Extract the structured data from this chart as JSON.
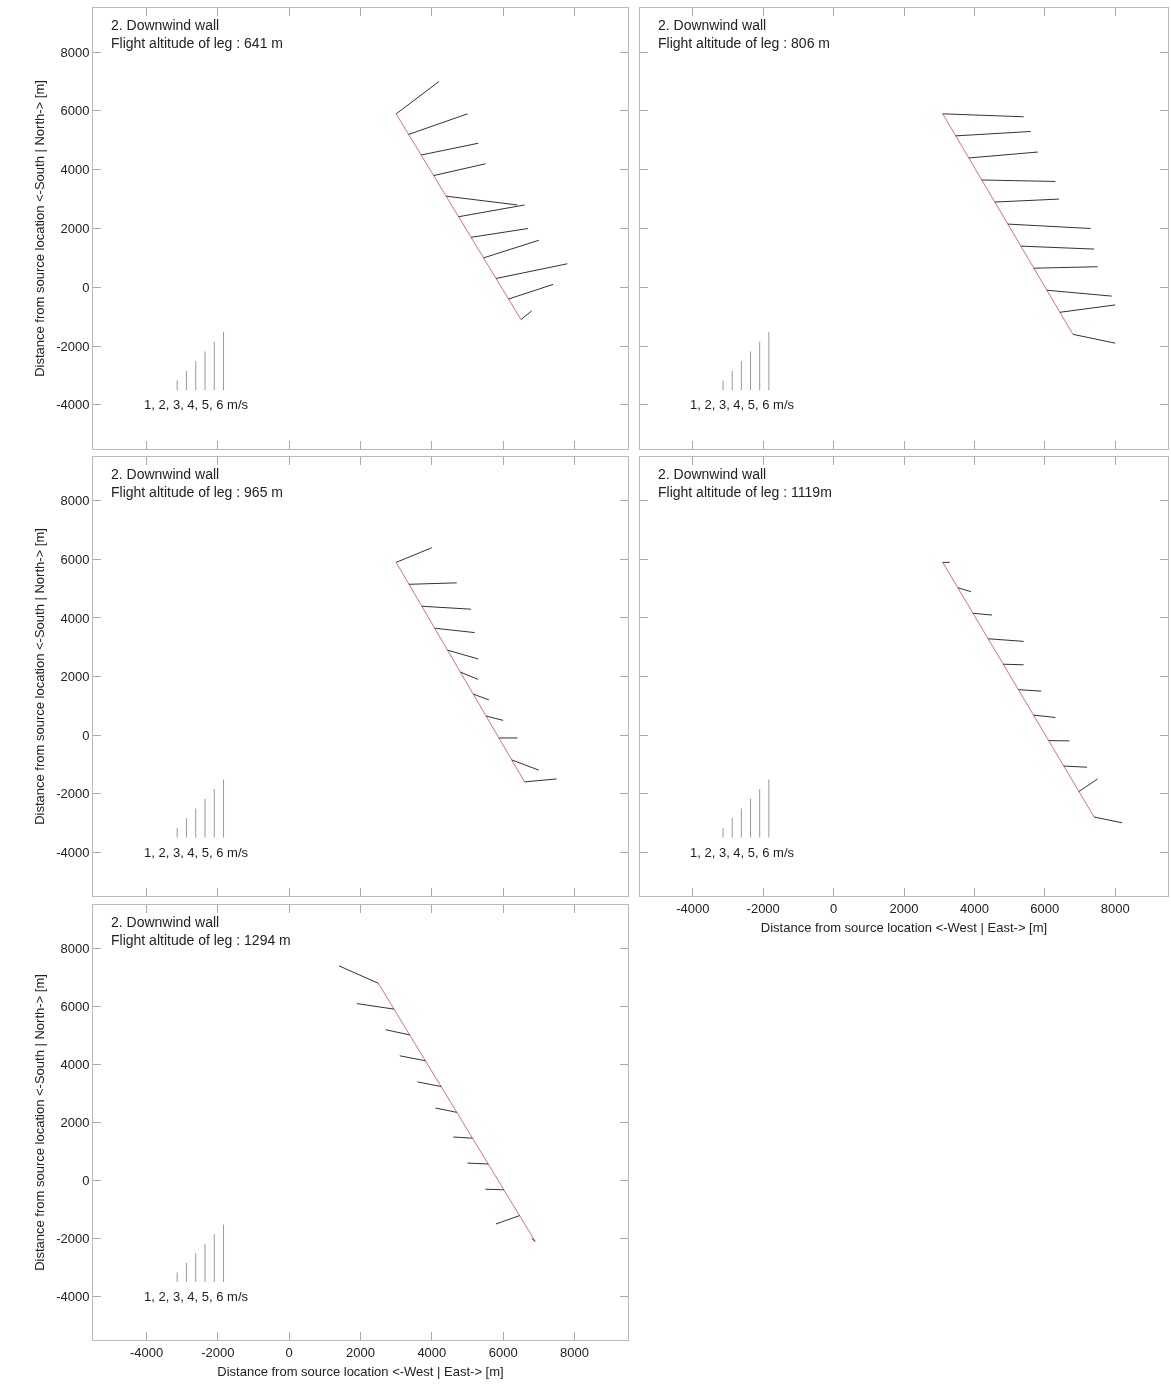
{
  "chart_data": [
    {
      "type": "line",
      "title": "2. Downwind wall",
      "subtitle": "Flight altitude of leg : 641 m",
      "ylabel": "Distance from source location <-South | North-> [m]",
      "annotations": [
        "1, 2, 3, 4, 5, 6 m/s"
      ],
      "xlim": [
        -5500,
        9500
      ],
      "ylim": [
        -5500,
        9500
      ],
      "xticks": [
        -4000,
        -2000,
        0,
        2000,
        4000,
        6000,
        8000
      ],
      "yticks": [
        -4000,
        -2000,
        0,
        2000,
        4000,
        6000,
        8000
      ],
      "tick_labels": "y",
      "series": [
        {
          "color": "#e07070",
          "x": [
            3000,
            6500
          ],
          "values": [
            5900,
            -1100
          ]
        },
        {
          "color": "#333333",
          "x": [
            3000,
            4200
          ],
          "values": [
            5900,
            7000
          ]
        },
        {
          "color": "#333333",
          "x": [
            3350,
            5000
          ],
          "values": [
            5200,
            5900
          ]
        },
        {
          "color": "#333333",
          "x": [
            3700,
            5300
          ],
          "values": [
            4500,
            4900
          ]
        },
        {
          "color": "#333333",
          "x": [
            4050,
            5500
          ],
          "values": [
            3800,
            4200
          ]
        },
        {
          "color": "#333333",
          "x": [
            4400,
            6400
          ],
          "values": [
            3100,
            2800
          ]
        },
        {
          "color": "#333333",
          "x": [
            4750,
            6600
          ],
          "values": [
            2400,
            2800
          ]
        },
        {
          "color": "#333333",
          "x": [
            5100,
            6700
          ],
          "values": [
            1700,
            2000
          ]
        },
        {
          "color": "#333333",
          "x": [
            5450,
            7000
          ],
          "values": [
            1000,
            1600
          ]
        },
        {
          "color": "#333333",
          "x": [
            5800,
            7800
          ],
          "values": [
            300,
            800
          ]
        },
        {
          "color": "#333333",
          "x": [
            6150,
            7400
          ],
          "values": [
            -400,
            100
          ]
        },
        {
          "color": "#333333",
          "x": [
            6500,
            6800
          ],
          "values": [
            -1100,
            -800
          ]
        }
      ]
    },
    {
      "type": "line",
      "title": "2. Downwind wall",
      "subtitle": "Flight altitude of leg : 806 m",
      "annotations": [
        "1, 2, 3, 4, 5, 6 m/s"
      ],
      "xlim": [
        -5500,
        9500
      ],
      "ylim": [
        -5500,
        9500
      ],
      "xticks": [
        -4000,
        -2000,
        0,
        2000,
        4000,
        6000,
        8000
      ],
      "yticks": [
        -4000,
        -2000,
        0,
        2000,
        4000,
        6000,
        8000
      ],
      "tick_labels": false,
      "series": [
        {
          "color": "#e07070",
          "x": [
            3100,
            6800
          ],
          "values": [
            5900,
            -1600
          ]
        },
        {
          "color": "#333333",
          "x": [
            3100,
            5400
          ],
          "values": [
            5900,
            5800
          ]
        },
        {
          "color": "#333333",
          "x": [
            3470,
            5600
          ],
          "values": [
            5150,
            5300
          ]
        },
        {
          "color": "#333333",
          "x": [
            3840,
            5800
          ],
          "values": [
            4400,
            4600
          ]
        },
        {
          "color": "#333333",
          "x": [
            4210,
            6300
          ],
          "values": [
            3650,
            3600
          ]
        },
        {
          "color": "#333333",
          "x": [
            4580,
            6400
          ],
          "values": [
            2900,
            3000
          ]
        },
        {
          "color": "#333333",
          "x": [
            4950,
            7300
          ],
          "values": [
            2150,
            2000
          ]
        },
        {
          "color": "#333333",
          "x": [
            5320,
            7400
          ],
          "values": [
            1400,
            1300
          ]
        },
        {
          "color": "#333333",
          "x": [
            5690,
            7500
          ],
          "values": [
            650,
            700
          ]
        },
        {
          "color": "#333333",
          "x": [
            6060,
            7900
          ],
          "values": [
            -100,
            -300
          ]
        },
        {
          "color": "#333333",
          "x": [
            6430,
            8000
          ],
          "values": [
            -850,
            -600
          ]
        },
        {
          "color": "#333333",
          "x": [
            6800,
            8000
          ],
          "values": [
            -1600,
            -1900
          ]
        }
      ]
    },
    {
      "type": "line",
      "title": "2. Downwind wall",
      "subtitle": "Flight altitude of leg : 965 m",
      "ylabel": "Distance from source location <-South | North-> [m]",
      "annotations": [
        "1, 2, 3, 4, 5, 6 m/s"
      ],
      "xlim": [
        -5500,
        9500
      ],
      "ylim": [
        -5500,
        9500
      ],
      "xticks": [
        -4000,
        -2000,
        0,
        2000,
        4000,
        6000,
        8000
      ],
      "yticks": [
        -4000,
        -2000,
        0,
        2000,
        4000,
        6000,
        8000
      ],
      "tick_labels": "y",
      "series": [
        {
          "color": "#e07070",
          "x": [
            3000,
            6600
          ],
          "values": [
            5900,
            -1600
          ]
        },
        {
          "color": "#333333",
          "x": [
            3000,
            4000
          ],
          "values": [
            5900,
            6400
          ]
        },
        {
          "color": "#333333",
          "x": [
            3360,
            4700
          ],
          "values": [
            5150,
            5200
          ]
        },
        {
          "color": "#333333",
          "x": [
            3720,
            5100
          ],
          "values": [
            4400,
            4300
          ]
        },
        {
          "color": "#333333",
          "x": [
            4080,
            5200
          ],
          "values": [
            3650,
            3500
          ]
        },
        {
          "color": "#333333",
          "x": [
            4440,
            5300
          ],
          "values": [
            2900,
            2600
          ]
        },
        {
          "color": "#333333",
          "x": [
            4800,
            5300
          ],
          "values": [
            2150,
            1900
          ]
        },
        {
          "color": "#333333",
          "x": [
            5160,
            5600
          ],
          "values": [
            1400,
            1200
          ]
        },
        {
          "color": "#333333",
          "x": [
            5520,
            6000
          ],
          "values": [
            650,
            500
          ]
        },
        {
          "color": "#333333",
          "x": [
            5880,
            6400
          ],
          "values": [
            -100,
            -100
          ]
        },
        {
          "color": "#333333",
          "x": [
            6240,
            7000
          ],
          "values": [
            -850,
            -1200
          ]
        },
        {
          "color": "#333333",
          "x": [
            6600,
            7500
          ],
          "values": [
            -1600,
            -1500
          ]
        }
      ]
    },
    {
      "type": "line",
      "title": "2. Downwind wall",
      "subtitle": "Flight altitude of leg : 1119m",
      "xlabel": "Distance from source location <-West | East-> [m]",
      "annotations": [
        "1, 2, 3, 4, 5, 6 m/s"
      ],
      "xlim": [
        -5500,
        9500
      ],
      "ylim": [
        -5500,
        9500
      ],
      "xticks": [
        -4000,
        -2000,
        0,
        2000,
        4000,
        6000,
        8000
      ],
      "yticks": [
        -4000,
        -2000,
        0,
        2000,
        4000,
        6000,
        8000
      ],
      "tick_labels": "x",
      "series": [
        {
          "color": "#e07070",
          "x": [
            3100,
            7400
          ],
          "values": [
            5900,
            -2800
          ]
        },
        {
          "color": "#333333",
          "x": [
            3100,
            3300
          ],
          "values": [
            5900,
            5900
          ]
        },
        {
          "color": "#333333",
          "x": [
            3530,
            3900
          ],
          "values": [
            5030,
            4900
          ]
        },
        {
          "color": "#333333",
          "x": [
            3960,
            4500
          ],
          "values": [
            4160,
            4100
          ]
        },
        {
          "color": "#333333",
          "x": [
            4390,
            5400
          ],
          "values": [
            3290,
            3200
          ]
        },
        {
          "color": "#333333",
          "x": [
            4820,
            5400
          ],
          "values": [
            2420,
            2400
          ]
        },
        {
          "color": "#333333",
          "x": [
            5250,
            5900
          ],
          "values": [
            1550,
            1500
          ]
        },
        {
          "color": "#333333",
          "x": [
            5680,
            6300
          ],
          "values": [
            680,
            600
          ]
        },
        {
          "color": "#333333",
          "x": [
            6110,
            6700
          ],
          "values": [
            -190,
            -200
          ]
        },
        {
          "color": "#333333",
          "x": [
            6540,
            7200
          ],
          "values": [
            -1060,
            -1100
          ]
        },
        {
          "color": "#333333",
          "x": [
            6970,
            7500
          ],
          "values": [
            -1930,
            -1500
          ]
        },
        {
          "color": "#333333",
          "x": [
            7400,
            8200
          ],
          "values": [
            -2800,
            -3000
          ]
        }
      ]
    },
    {
      "type": "line",
      "title": "2. Downwind wall",
      "subtitle": "Flight altitude of leg : 1294 m",
      "xlabel": "Distance from source location <-West | East-> [m]",
      "ylabel": "Distance from source location <-South | North-> [m]",
      "annotations": [
        "1, 2, 3, 4, 5, 6 m/s"
      ],
      "xlim": [
        -5500,
        9500
      ],
      "ylim": [
        -5500,
        9500
      ],
      "xticks": [
        -4000,
        -2000,
        0,
        2000,
        4000,
        6000,
        8000
      ],
      "yticks": [
        -4000,
        -2000,
        0,
        2000,
        4000,
        6000,
        8000
      ],
      "series": [
        {
          "color": "#e07070",
          "x": [
            2500,
            6900
          ],
          "values": [
            6800,
            -2100
          ]
        },
        {
          "color": "#333333",
          "x": [
            2500,
            1400
          ],
          "values": [
            6800,
            7400
          ]
        },
        {
          "color": "#333333",
          "x": [
            2940,
            1900
          ],
          "values": [
            5910,
            6100
          ]
        },
        {
          "color": "#333333",
          "x": [
            3380,
            2700
          ],
          "values": [
            5020,
            5200
          ]
        },
        {
          "color": "#333333",
          "x": [
            3820,
            3100
          ],
          "values": [
            4130,
            4300
          ]
        },
        {
          "color": "#333333",
          "x": [
            4260,
            3600
          ],
          "values": [
            3240,
            3400
          ]
        },
        {
          "color": "#333333",
          "x": [
            4700,
            4100
          ],
          "values": [
            2350,
            2500
          ]
        },
        {
          "color": "#333333",
          "x": [
            5140,
            4600
          ],
          "values": [
            1460,
            1500
          ]
        },
        {
          "color": "#333333",
          "x": [
            5580,
            5000
          ],
          "values": [
            570,
            600
          ]
        },
        {
          "color": "#333333",
          "x": [
            6020,
            5500
          ],
          "values": [
            -320,
            -300
          ]
        },
        {
          "color": "#333333",
          "x": [
            6460,
            5800
          ],
          "values": [
            -1210,
            -1500
          ]
        },
        {
          "color": "#333333",
          "x": [
            6900,
            6800
          ],
          "values": [
            -2100,
            -2000
          ]
        }
      ]
    }
  ]
}
